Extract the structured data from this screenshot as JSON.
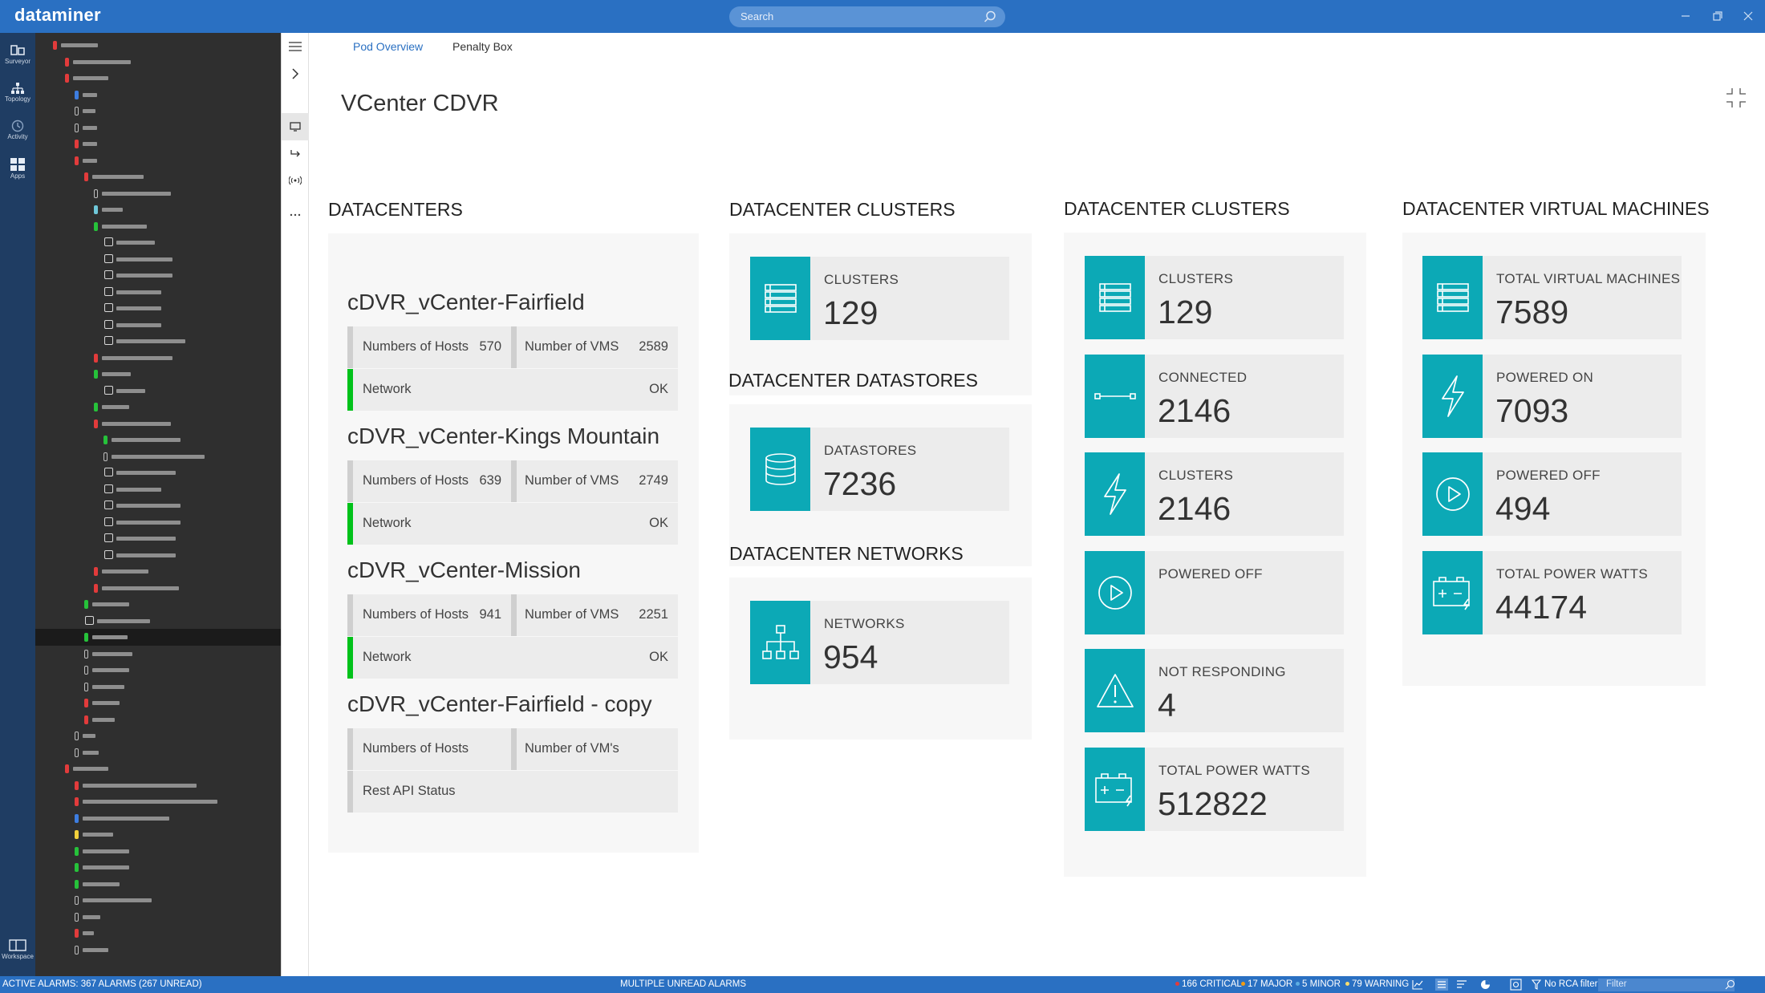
{
  "app": {
    "brand": "dataminer",
    "search_placeholder": "Search"
  },
  "rail": [
    {
      "label": "Surveyor",
      "icon": "surveyor-icon"
    },
    {
      "label": "Topology",
      "icon": "topology-icon"
    },
    {
      "label": "Activity",
      "icon": "activity-icon"
    },
    {
      "label": "Apps",
      "icon": "apps-icon"
    },
    {
      "label": "Workspace",
      "icon": "workspace-icon"
    }
  ],
  "tabs": [
    {
      "label": "Pod Overview",
      "active": true
    },
    {
      "label": "Penalty Box",
      "active": false
    }
  ],
  "page": {
    "title": "VCenter CDVR"
  },
  "datacenters": {
    "title": "DATACENTERS",
    "items": [
      {
        "name": "cDVR_vCenter-Fairfield",
        "hosts_label": "Numbers of Hosts",
        "hosts": "570",
        "vms_label": "Number of VMS",
        "vms": "2589",
        "status_label": "Network",
        "status": "OK"
      },
      {
        "name": "cDVR_vCenter-Kings Mountain",
        "hosts_label": "Numbers of Hosts",
        "hosts": "639",
        "vms_label": "Number of VMS",
        "vms": "2749",
        "status_label": "Network",
        "status": "OK"
      },
      {
        "name": "cDVR_vCenter-Mission",
        "hosts_label": "Numbers of Hosts",
        "hosts": "941",
        "vms_label": "Number of VMS",
        "vms": "2251",
        "status_label": "Network",
        "status": "OK"
      },
      {
        "name": "cDVR_vCenter-Fairfield - copy",
        "hosts_label": "Numbers of Hosts",
        "hosts": "",
        "vms_label": "Number of VM's",
        "vms": "",
        "status_label": "Rest API Status",
        "status": ""
      }
    ]
  },
  "col2": {
    "clusters_title": "DATACENTER  CLUSTERS",
    "clusters": {
      "label": "CLUSTERS",
      "value": "129"
    },
    "datastores_title": "DATACENTER DATASTORES",
    "datastores": {
      "label": "DATASTORES",
      "value": "7236"
    },
    "networks_title": "DATACENTER NETWORKS",
    "networks": {
      "label": "NETWORKS",
      "value": "954"
    }
  },
  "col3": {
    "title": "DATACENTER  CLUSTERS",
    "tiles": [
      {
        "label": "CLUSTERS",
        "value": "129",
        "icon": "list-icon"
      },
      {
        "label": "CONNECTED",
        "value": "2146",
        "icon": "connection-icon"
      },
      {
        "label": "CLUSTERS",
        "value": "2146",
        "icon": "lightning-icon"
      },
      {
        "label": "POWERED OFF",
        "value": "",
        "icon": "play-circle-icon"
      },
      {
        "label": "NOT RESPONDING",
        "value": "4",
        "icon": "warning-icon"
      },
      {
        "label": "TOTAL POWER WATTS",
        "value": "512822",
        "icon": "battery-icon"
      }
    ]
  },
  "col4": {
    "title": "DATACENTER VIRTUAL MACHINES",
    "tiles": [
      {
        "label": "TOTAL VIRTUAL MACHINES",
        "value": "7589",
        "icon": "list-icon"
      },
      {
        "label": "POWERED ON",
        "value": "7093",
        "icon": "lightning-icon"
      },
      {
        "label": "POWERED OFF",
        "value": "494",
        "icon": "play-circle-icon"
      },
      {
        "label": "TOTAL POWER WATTS",
        "value": "44174",
        "icon": "battery-icon"
      }
    ]
  },
  "statusbar": {
    "active_alarms": "ACTIVE ALARMS: 367 ALARMS (267 UNREAD)",
    "message": "MULTIPLE UNREAD ALARMS",
    "critical": "166 CRITICAL",
    "major": "17 MAJOR",
    "minor": "5 MINOR",
    "warning": "79 WARNING",
    "rca": "No RCA filter",
    "filter_placeholder": "Filter"
  },
  "colors": {
    "titlebar": "#2a70c2",
    "accent_tile": "#0ca9b6",
    "ok_green": "#00c21a",
    "critical": "#e23b3b",
    "major": "#f39c12",
    "minor": "#5dade2",
    "warning": "#f7dc6f"
  }
}
